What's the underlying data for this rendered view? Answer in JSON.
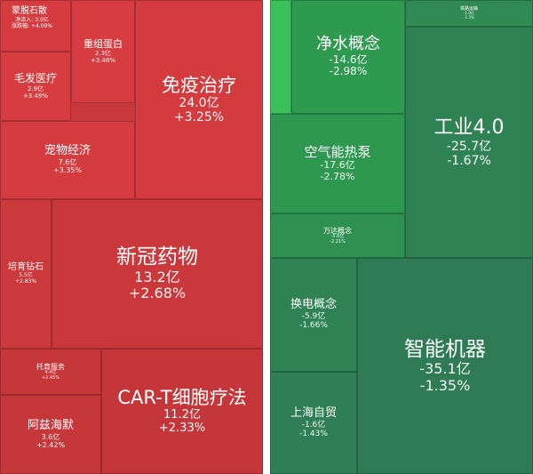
{
  "left": {
    "tiles": [
      {
        "name": "蒙脱石散",
        "rows": [
          {
            "label": "净流入:",
            "value": "3.0亿"
          },
          {
            "label": "涨跌幅:",
            "value": "+4.09%"
          }
        ],
        "color": "#d63c3f"
      },
      {
        "name": "重组蛋白",
        "value": "2.3亿",
        "pct": "+3.48%",
        "color": "#d73d40"
      },
      {
        "name": "毛发医疗",
        "value": "2.9亿",
        "pct": "+3.49%",
        "color": "#d73d40"
      },
      {
        "name": "免疫治疗",
        "value": "24.0亿",
        "pct": "+3.25%",
        "color": "#d33b3e"
      },
      {
        "name": "宠物经济",
        "value": "7.6亿",
        "pct": "+3.35%",
        "color": "#d43c3f"
      },
      {
        "name": "培育钻石",
        "value": "5.5亿",
        "pct": "+2.83%",
        "color": "#cc393c"
      },
      {
        "name": "新冠药物",
        "value": "13.2亿",
        "pct": "+2.68%",
        "color": "#ca383b"
      },
      {
        "name": "托育服务",
        "value": "4.4亿",
        "pct": "+2.45%",
        "color": "#c7373a"
      },
      {
        "name": "CAR-T细胞疗法",
        "value": "11.2亿",
        "pct": "+2.33%",
        "color": "#c43639"
      },
      {
        "name": "阿兹海默",
        "value": "3.6亿",
        "pct": "+2.42%",
        "color": "#c6373a"
      }
    ]
  },
  "right": {
    "tiles": [
      {
        "name": "",
        "value": "",
        "pct": "",
        "color": "#3cc05b"
      },
      {
        "name": "",
        "value": "",
        "pct": "",
        "color": "#2fa551"
      },
      {
        "name": "净水概念",
        "value": "-14.6亿",
        "pct": "-2.98%",
        "color": "#2e9a4f"
      },
      {
        "name": "铁路运输",
        "value": "-1.0亿",
        "pct": "-1.5%",
        "color": "#2f8a53"
      },
      {
        "name": "空气能热泵",
        "value": "-17.6亿",
        "pct": "-2.78%",
        "color": "#2e9750"
      },
      {
        "name": "工业4.0",
        "value": "-25.7亿",
        "pct": "-1.67%",
        "color": "#2f8254"
      },
      {
        "name": "万达概念",
        "value": "-5.6亿",
        "pct": "-2.21%",
        "color": "#2e9051"
      },
      {
        "name": "换电概念",
        "value": "-5.9亿",
        "pct": "-1.66%",
        "color": "#2f8254"
      },
      {
        "name": "智能机器",
        "value": "-35.1亿",
        "pct": "-1.35%",
        "color": "#2f7b55"
      },
      {
        "name": "上海自贸",
        "value": "-1.6亿",
        "pct": "-1.43%",
        "color": "#2f7e55"
      }
    ]
  }
}
